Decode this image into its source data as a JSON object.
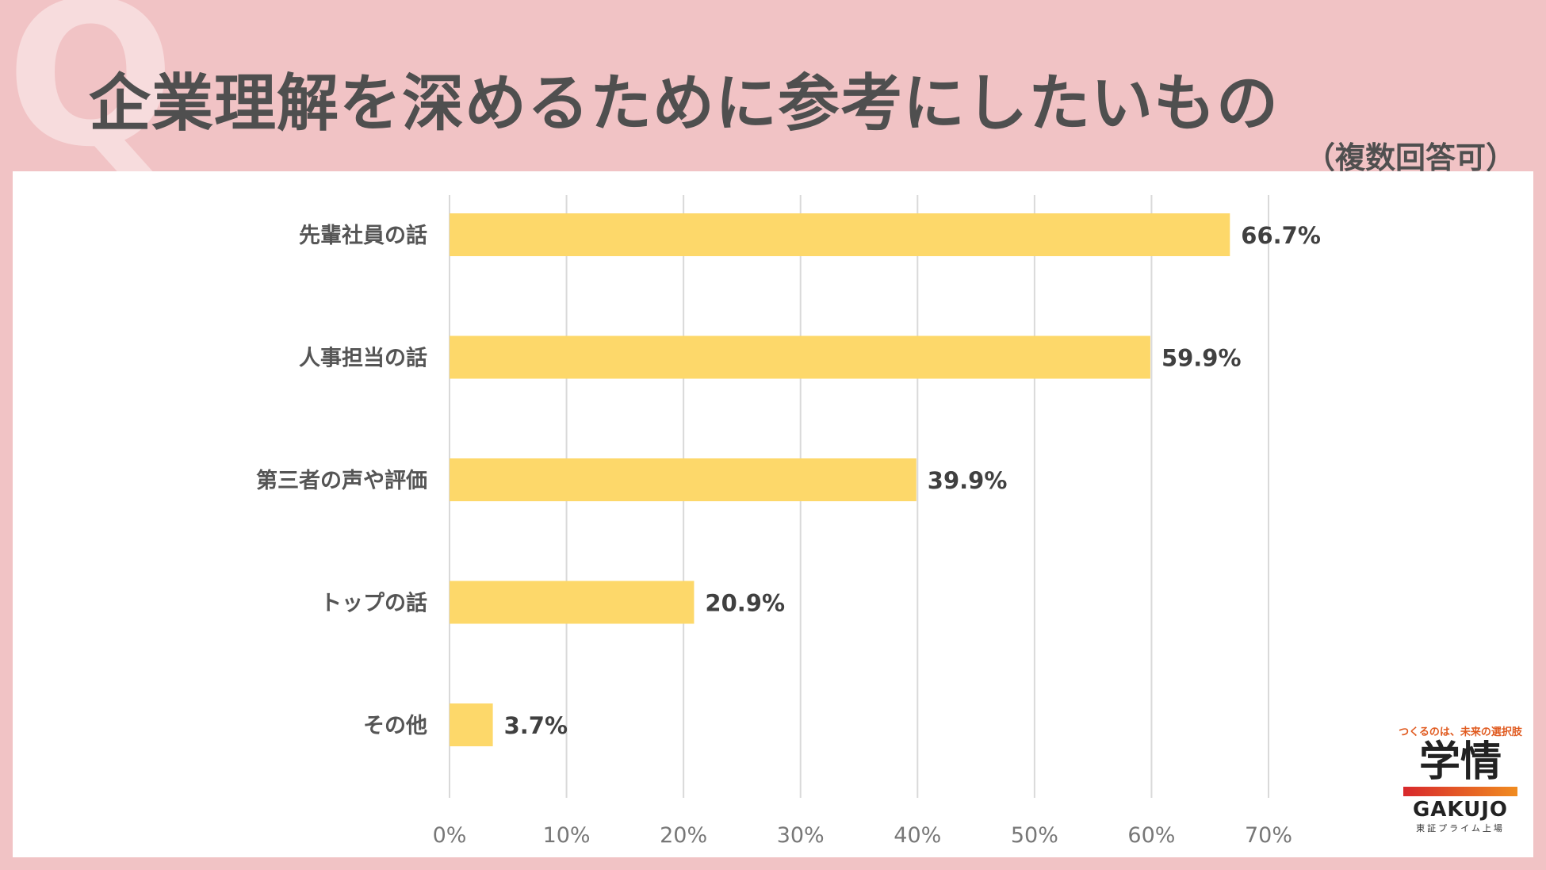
{
  "header": {
    "q_mark": "Q",
    "title": "企業理解を深めるために参考にしたいもの",
    "subtitle": "（複数回答可）"
  },
  "colors": {
    "background": "#f1c3c5",
    "bar": "#fdd86a",
    "title_text": "#4f4f4f"
  },
  "chart_data": {
    "type": "bar",
    "orientation": "horizontal",
    "title": "企業理解を深めるために参考にしたいもの",
    "subtitle": "（複数回答可）",
    "categories": [
      "先輩社員の話",
      "人事担当の話",
      "第三者の声や評価",
      "トップの話",
      "その他"
    ],
    "values": [
      66.7,
      59.9,
      39.9,
      20.9,
      3.7
    ],
    "value_labels": [
      "66.7%",
      "59.9%",
      "39.9%",
      "20.9%",
      "3.7%"
    ],
    "x_ticks": [
      "0%",
      "10%",
      "20%",
      "30%",
      "40%",
      "50%",
      "60%",
      "70%"
    ],
    "xlim": [
      0,
      70
    ],
    "xlabel": "",
    "ylabel": "",
    "grid": true
  },
  "logo": {
    "tagline": "つくるのは、未来の選択肢",
    "name_jp": "学情",
    "name_en": "GAKUJO",
    "listing": "東証プライム上場"
  }
}
